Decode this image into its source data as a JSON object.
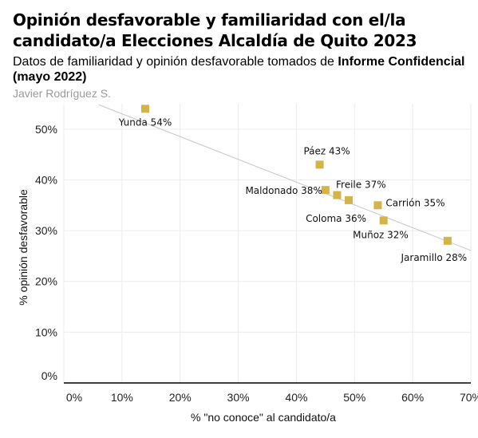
{
  "header": {
    "title": "Opinión desfavorable y familiaridad con el/la candidato/a Elecciones Alcaldía de Quito 2023",
    "subtitle_prefix": "Datos de familiaridad y opinión desfavorable tomados de ",
    "subtitle_bold": "Informe Confidencial (mayo 2022)",
    "author": "Javier Rodríguez S."
  },
  "colors": {
    "points": "#d4b44a",
    "trendline": "#c8c8c8",
    "grid": "#ececec",
    "axis": "#000000"
  },
  "chart_data": {
    "type": "scatter",
    "xlabel": "% \"no conoce\" al candidato/a",
    "ylabel": "% opinión desfavorable",
    "xlim": [
      0,
      70
    ],
    "ylim": [
      0,
      55
    ],
    "x_ticks": [
      0,
      10,
      20,
      30,
      40,
      50,
      60,
      70
    ],
    "x_tick_labels": [
      "0%",
      "10%",
      "20%",
      "30%",
      "40%",
      "50%",
      "60%",
      "70%"
    ],
    "y_ticks": [
      0,
      10,
      20,
      30,
      40,
      50
    ],
    "y_tick_labels": [
      "0%",
      "10%",
      "20%",
      "30%",
      "40%",
      "50%"
    ],
    "grid": true,
    "trendline": true,
    "points": [
      {
        "label": "Yunda 54%",
        "x": 14,
        "y": 54
      },
      {
        "label": "Páez 43%",
        "x": 44,
        "y": 43
      },
      {
        "label": "Maldonado 38%",
        "x": 45,
        "y": 38
      },
      {
        "label": "Freile 37%",
        "x": 47,
        "y": 37
      },
      {
        "label": "Coloma 36%",
        "x": 49,
        "y": 36
      },
      {
        "label": "Carrión 35%",
        "x": 54,
        "y": 35
      },
      {
        "label": "Muñoz 32%",
        "x": 55,
        "y": 32
      },
      {
        "label": "Jaramillo 28%",
        "x": 66,
        "y": 28
      }
    ],
    "trend": {
      "x": [
        6,
        70
      ],
      "y": [
        54.8,
        26.1
      ]
    }
  }
}
